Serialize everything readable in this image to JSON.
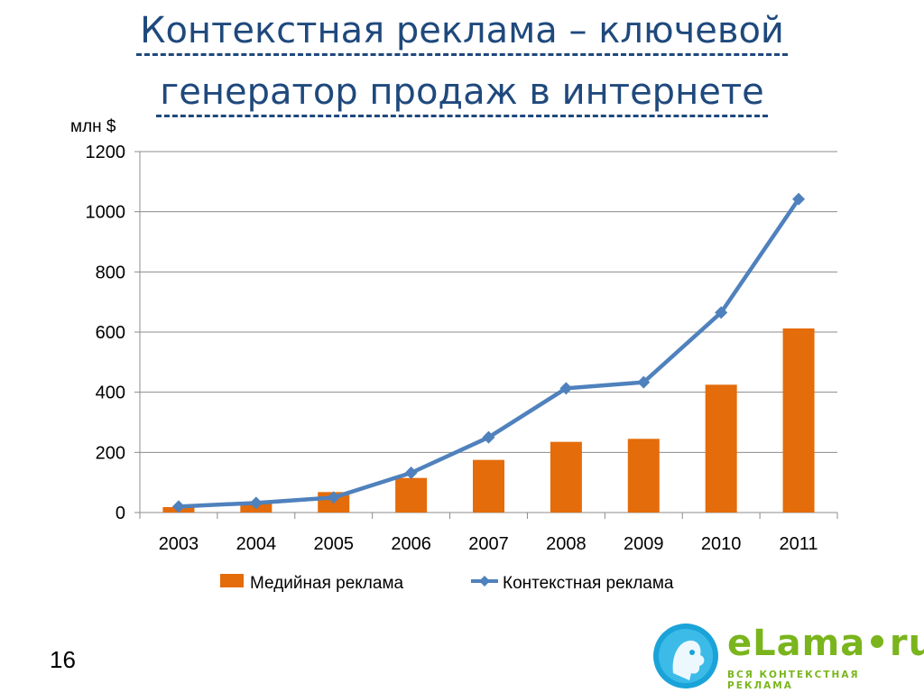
{
  "slide": {
    "title_line1": "Контекстная реклама – ключевой",
    "title_line2": "генератор продаж в интернете",
    "page_number": "16"
  },
  "logo": {
    "word": "eLama•ru",
    "tagline": "ВСЯ КОНТЕКСТНАЯ РЕКЛАМА"
  },
  "colors": {
    "title": "#1f497d",
    "bar": "#e46c0a",
    "line": "#4f81bd",
    "logo_green": "#7ab51d",
    "logo_blue": "#1aa3d8"
  },
  "chart_data": {
    "type": "bar",
    "unit_label": "млн $",
    "categories": [
      "2003",
      "2004",
      "2005",
      "2006",
      "2007",
      "2008",
      "2009",
      "2010",
      "2011"
    ],
    "ylim": [
      0,
      1200
    ],
    "yticks": [
      0,
      200,
      400,
      600,
      800,
      1000,
      1200
    ],
    "grid": true,
    "legend_position": "bottom",
    "series": [
      {
        "name": "Медийная реклама",
        "type": "bar",
        "color": "#e46c0a",
        "values": [
          18,
          30,
          68,
          115,
          175,
          235,
          245,
          425,
          612
        ]
      },
      {
        "name": "Контекстная реклама",
        "type": "line",
        "marker": "diamond",
        "color": "#4f81bd",
        "values": [
          20,
          32,
          50,
          132,
          250,
          413,
          433,
          665,
          1042
        ]
      }
    ]
  }
}
